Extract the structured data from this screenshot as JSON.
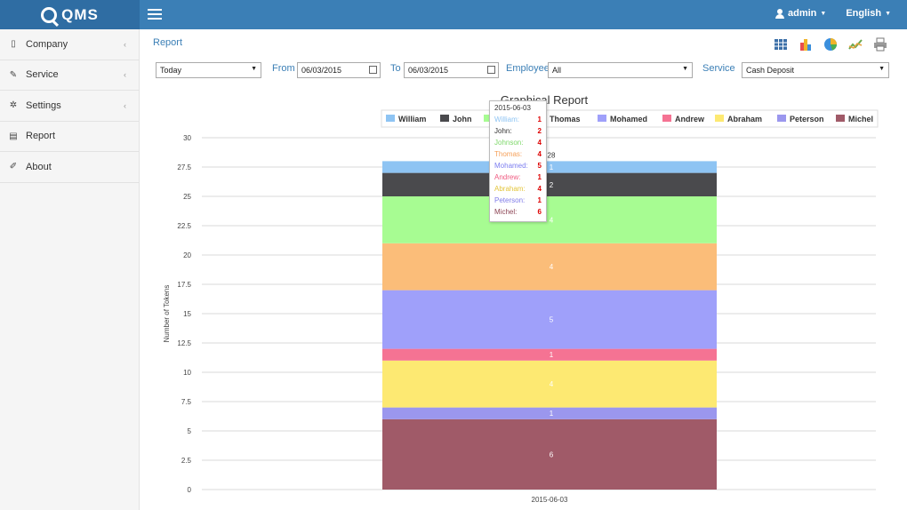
{
  "header": {
    "brand": "QMS",
    "user": "admin",
    "language": "English"
  },
  "sidebar": {
    "items": [
      {
        "label": "Company",
        "icon": "building-icon"
      },
      {
        "label": "Service",
        "icon": "wrench-icon"
      },
      {
        "label": "Settings",
        "icon": "gear-icon"
      },
      {
        "label": "Report",
        "icon": "document-icon"
      },
      {
        "label": "About",
        "icon": "edit-icon"
      }
    ]
  },
  "page": {
    "title": "Report"
  },
  "filters": {
    "period": "Today",
    "from_label": "From",
    "from_value": "06/03/2015",
    "to_label": "To",
    "to_value": "06/03/2015",
    "employee_label": "Employee",
    "employee_value": "All",
    "service_label": "Service",
    "service_value": "Cash Deposit"
  },
  "chart_data": {
    "type": "bar",
    "stacked": true,
    "title": "Graphical Report",
    "ylabel": "Number of Tokens",
    "xlabel": "",
    "ylim": [
      0,
      30
    ],
    "yticks": [
      "0",
      "2.5",
      "5",
      "7.5",
      "10",
      "12.5",
      "15",
      "17.5",
      "20",
      "22.5",
      "25",
      "27.5",
      "30"
    ],
    "categories": [
      "2015-06-03"
    ],
    "total_label": "28",
    "legend_position": "top",
    "series": [
      {
        "name": "Michel",
        "values": [
          6
        ],
        "color": "#a05a68"
      },
      {
        "name": "Peterson",
        "values": [
          1
        ],
        "color": "#9b97ee"
      },
      {
        "name": "Abraham",
        "values": [
          4
        ],
        "color": "#fde972"
      },
      {
        "name": "Andrew",
        "values": [
          1
        ],
        "color": "#f57393"
      },
      {
        "name": "Mohamed",
        "values": [
          5
        ],
        "color": "#9fa0fa"
      },
      {
        "name": "Thomas",
        "values": [
          4
        ],
        "color": "#fbbd79"
      },
      {
        "name": "Johnson",
        "values": [
          4
        ],
        "color": "#a7fc92"
      },
      {
        "name": "John",
        "values": [
          2
        ],
        "color": "#4a4a4d"
      },
      {
        "name": "William",
        "values": [
          1
        ],
        "color": "#8ec4f3"
      }
    ],
    "legend": [
      "William",
      "John",
      "Johnson",
      "Thomas",
      "Mohamed",
      "Andrew",
      "Abraham",
      "Peterson",
      "Michel"
    ],
    "tooltip": {
      "date": "2015-06-03",
      "rows": [
        {
          "name": "William:",
          "value": "1",
          "color": "#8ec4f3"
        },
        {
          "name": "John:",
          "value": "2",
          "color": "#333333"
        },
        {
          "name": "Johnson:",
          "value": "4",
          "color": "#7ed86a"
        },
        {
          "name": "Thomas:",
          "value": "4",
          "color": "#f5a15a"
        },
        {
          "name": "Mohamed:",
          "value": "5",
          "color": "#7c7ef0"
        },
        {
          "name": "Andrew:",
          "value": "1",
          "color": "#ef5a80"
        },
        {
          "name": "Abraham:",
          "value": "4",
          "color": "#e3c53b"
        },
        {
          "name": "Peterson:",
          "value": "1",
          "color": "#7f7be8"
        },
        {
          "name": "Michel:",
          "value": "6",
          "color": "#8c4454"
        }
      ]
    }
  }
}
